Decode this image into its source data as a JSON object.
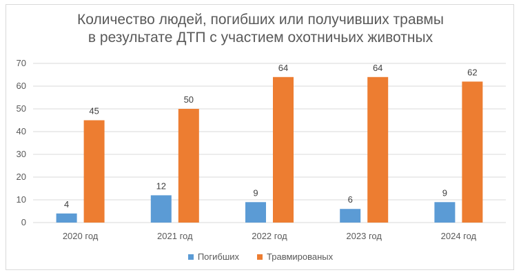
{
  "chart_data": {
    "type": "bar",
    "title_lines": [
      "Количество людей, погибших или получивших травмы",
      "в результате ДТП с участием охотничьих животных"
    ],
    "categories": [
      "2020 год",
      "2021 год",
      "2022 год",
      "2023 год",
      "2024 год"
    ],
    "series": [
      {
        "name": "Погибших",
        "color": "#5b9bd5",
        "values": [
          4,
          12,
          9,
          6,
          9
        ]
      },
      {
        "name": "Травмированых",
        "color": "#ed7d31",
        "values": [
          45,
          50,
          64,
          64,
          62
        ]
      }
    ],
    "ylim": [
      0,
      70
    ],
    "yticks": [
      0,
      10,
      20,
      30,
      40,
      50,
      60,
      70
    ],
    "grid": true,
    "legend_position": "bottom"
  }
}
